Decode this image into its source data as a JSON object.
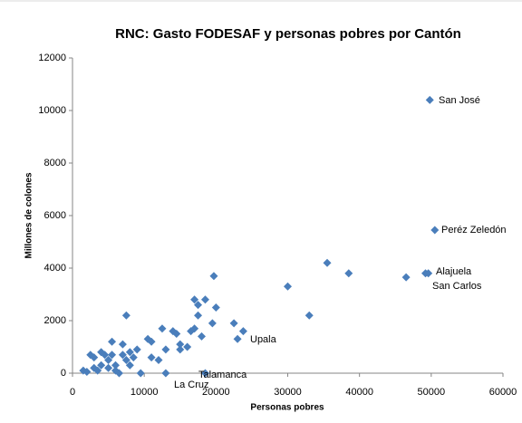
{
  "chart_data": {
    "type": "scatter",
    "title": "RNC: Gasto FODESAF y personas pobres por Cantón",
    "x_label": "Personas pobres",
    "y_label": "Millones de colones",
    "xlim": [
      0,
      60000
    ],
    "xticks": [
      0,
      10000,
      20000,
      30000,
      40000,
      50000,
      60000
    ],
    "ylim": [
      0,
      12000
    ],
    "yticks": [
      0,
      2000,
      4000,
      6000,
      8000,
      10000,
      12000
    ],
    "grid": false,
    "series": [
      {
        "color": "#4a7ebb",
        "x": [
          1500,
          2000,
          2500,
          3000,
          3000,
          3500,
          4000,
          4000,
          4500,
          5000,
          5000,
          5500,
          5500,
          6000,
          6000,
          6500,
          7000,
          7000,
          7500,
          7500,
          8000,
          8000,
          8500,
          9000,
          9500,
          10500,
          11000,
          11000,
          12000,
          12500,
          13000,
          13000,
          14000,
          14500,
          15000,
          15000,
          16000,
          16500,
          17000,
          17000,
          17500,
          17500,
          18500,
          18000,
          18500,
          19500,
          19700,
          20000,
          22500,
          23000,
          23800,
          30000,
          33000,
          35500,
          38500,
          46500,
          49200,
          49600,
          50500,
          49800
        ],
        "values": [
          100,
          50,
          700,
          200,
          600,
          100,
          800,
          300,
          700,
          500,
          200,
          1200,
          700,
          300,
          100,
          0,
          1100,
          700,
          500,
          2200,
          800,
          300,
          600,
          900,
          0,
          1300,
          1200,
          600,
          500,
          1700,
          900,
          0,
          1600,
          1500,
          1100,
          900,
          1000,
          1600,
          2800,
          1700,
          2600,
          2200,
          2800,
          1400,
          0,
          1900,
          3700,
          2500,
          1900,
          1300,
          1600,
          3300,
          2200,
          4200,
          3800,
          3650,
          3800,
          3800,
          5450,
          10400
        ]
      }
    ],
    "annotations": [
      "San José",
      "Peréz Zeledón",
      "Alajuela",
      "San Carlos",
      "Upala",
      "Talamanca",
      "La Cruz"
    ]
  }
}
